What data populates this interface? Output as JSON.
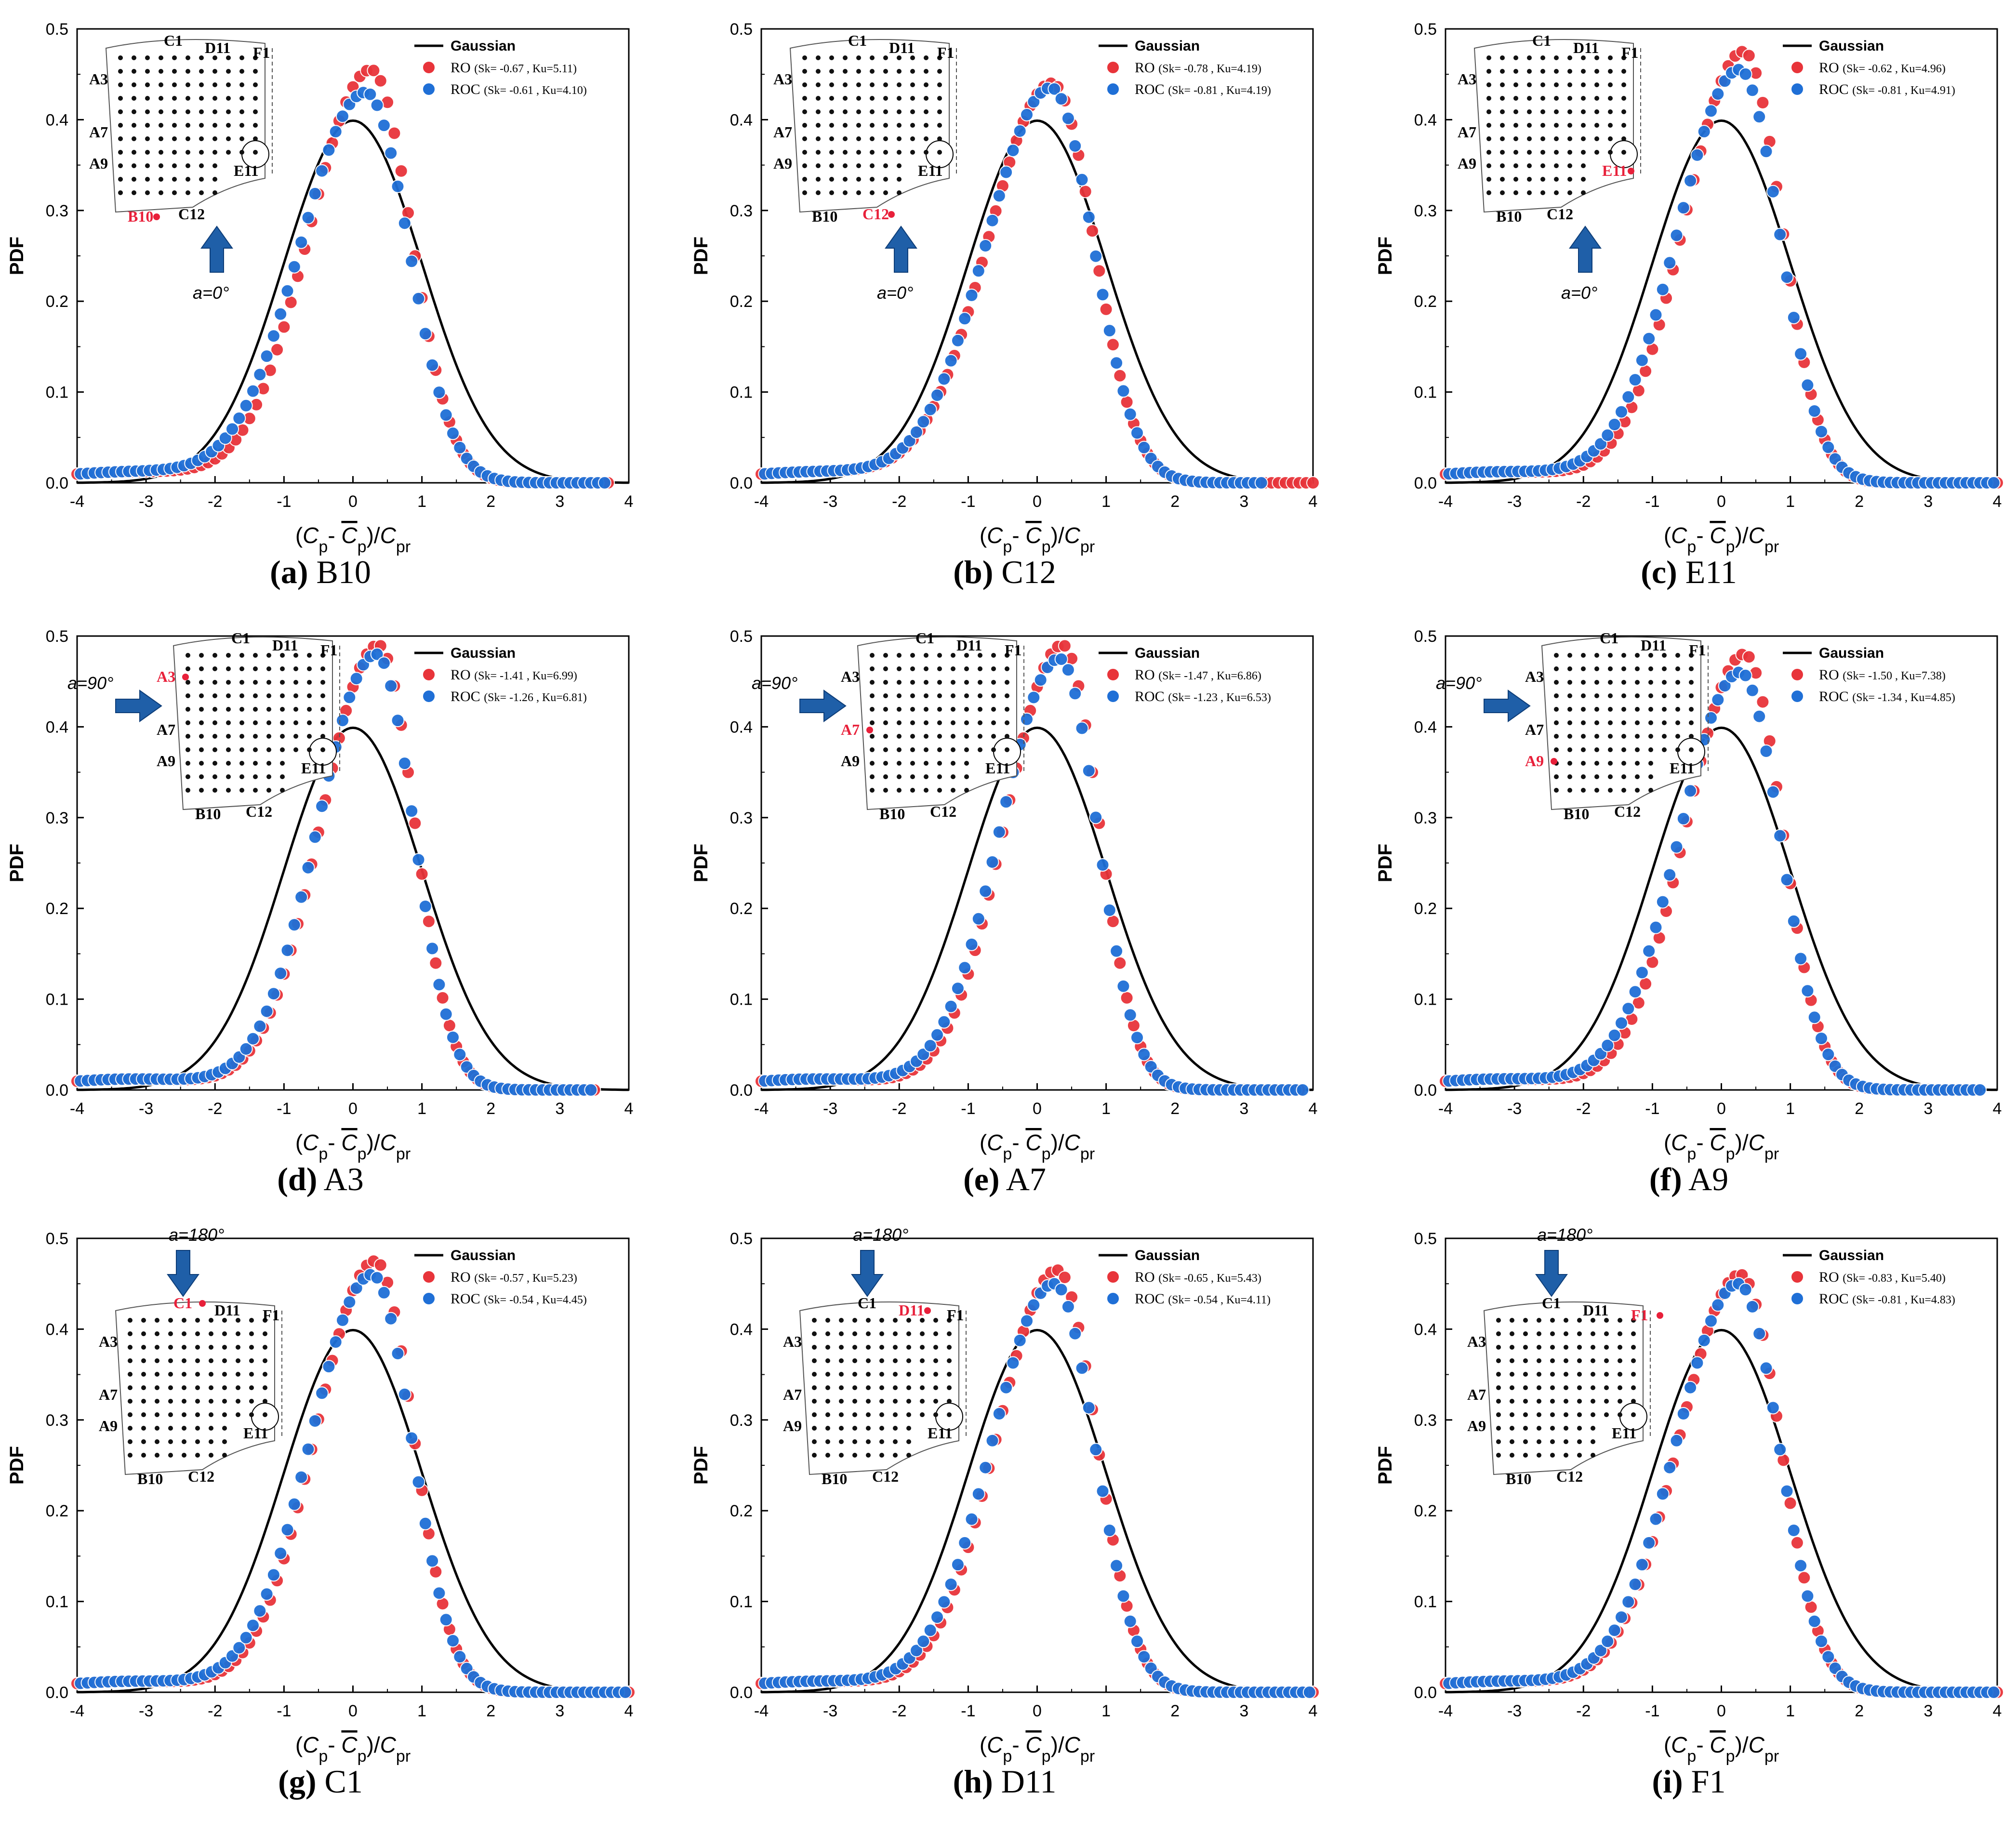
{
  "common": {
    "ylabel": "PDF",
    "xlabel_parts": [
      "(",
      "C",
      "p",
      "- ",
      "C",
      "p",
      ")/",
      "C",
      "pr"
    ],
    "legend": {
      "gaussian": "Gaussian",
      "ro": "RO",
      "roc": "ROC"
    },
    "colors": {
      "ro": "#e8343a",
      "roc": "#1f6fd6",
      "gaussian": "#000000",
      "arrow": "#1f5fa8",
      "highlight": "#e8203a"
    },
    "inset_labels": [
      "C1",
      "D11",
      "F1",
      "A3",
      "A7",
      "A9",
      "E11",
      "B10",
      "C12"
    ]
  },
  "chart_data": [
    {
      "type": "scatter",
      "panel_letter": "a",
      "panel_name": "B10",
      "wind_angle": "a=0°",
      "tap": "B10",
      "ylim": [
        0,
        0.5
      ],
      "xlim": [
        -4,
        4
      ],
      "yticks": [
        "0.0",
        "0.1",
        "0.2",
        "0.3",
        "0.4",
        "0.5"
      ],
      "xticks": [
        "-4",
        "-3",
        "-2",
        "-1",
        "0",
        "1",
        "2",
        "3",
        "4"
      ],
      "series": [
        {
          "name": "RO",
          "Sk": "-0.67",
          "Ku": "5.11",
          "peak": 0.455,
          "xmin": -4.0,
          "xmax": 3.8
        },
        {
          "name": "ROC",
          "Sk": "-0.61",
          "Ku": "4.10",
          "peak": 0.43,
          "xmin": -4.0,
          "xmax": 3.7
        }
      ]
    },
    {
      "type": "scatter",
      "panel_letter": "b",
      "panel_name": "C12",
      "wind_angle": "a=0°",
      "tap": "C12",
      "ylim": [
        0,
        0.5
      ],
      "xlim": [
        -4,
        4
      ],
      "yticks": [
        "0.0",
        "0.1",
        "0.2",
        "0.3",
        "0.4",
        "0.5"
      ],
      "xticks": [
        "-4",
        "-3",
        "-2",
        "-1",
        "0",
        "1",
        "2",
        "3",
        "4"
      ],
      "series": [
        {
          "name": "RO",
          "Sk": "-0.78",
          "Ku": "4.19",
          "peak": 0.44,
          "xmin": -4.0,
          "xmax": 4.0
        },
        {
          "name": "ROC",
          "Sk": "-0.81",
          "Ku": "4.19",
          "peak": 0.435,
          "xmin": -4.0,
          "xmax": 3.3
        }
      ]
    },
    {
      "type": "scatter",
      "panel_letter": "c",
      "panel_name": "E11",
      "wind_angle": "a=0°",
      "tap": "E11",
      "ylim": [
        0,
        0.5
      ],
      "xlim": [
        -4,
        4
      ],
      "yticks": [
        "0.0",
        "0.1",
        "0.2",
        "0.3",
        "0.4",
        "0.5"
      ],
      "xticks": [
        "-4",
        "-3",
        "-2",
        "-1",
        "0",
        "1",
        "2",
        "3",
        "4"
      ],
      "series": [
        {
          "name": "RO",
          "Sk": "-0.62",
          "Ku": "4.96",
          "peak": 0.475,
          "xmin": -4.0,
          "xmax": 4.0
        },
        {
          "name": "ROC",
          "Sk": "-0.81",
          "Ku": "4.91",
          "peak": 0.455,
          "xmin": -4.0,
          "xmax": 4.0
        }
      ]
    },
    {
      "type": "scatter",
      "panel_letter": "d",
      "panel_name": "A3",
      "wind_angle": "a=90°",
      "tap": "A3",
      "ylim": [
        0,
        0.5
      ],
      "xlim": [
        -4,
        4
      ],
      "yticks": [
        "0.0",
        "0.1",
        "0.2",
        "0.3",
        "0.4",
        "0.5"
      ],
      "xticks": [
        "-4",
        "-3",
        "-2",
        "-1",
        "0",
        "1",
        "2",
        "3",
        "4"
      ],
      "series": [
        {
          "name": "RO",
          "Sk": "-1.41",
          "Ku": "6.99",
          "peak": 0.49,
          "xmin": -4.0,
          "xmax": 3.5
        },
        {
          "name": "ROC",
          "Sk": "-1.26",
          "Ku": "6.81",
          "peak": 0.48,
          "xmin": -4.0,
          "xmax": 3.5
        }
      ]
    },
    {
      "type": "scatter",
      "panel_letter": "e",
      "panel_name": "A7",
      "wind_angle": "a=90°",
      "tap": "A7",
      "ylim": [
        0,
        0.5
      ],
      "xlim": [
        -4,
        4
      ],
      "yticks": [
        "0.0",
        "0.1",
        "0.2",
        "0.3",
        "0.4",
        "0.5"
      ],
      "xticks": [
        "-4",
        "-3",
        "-2",
        "-1",
        "0",
        "1",
        "2",
        "3",
        "4"
      ],
      "series": [
        {
          "name": "RO",
          "Sk": "-1.47",
          "Ku": "6.86",
          "peak": 0.49,
          "xmin": -4.0,
          "xmax": 3.9
        },
        {
          "name": "ROC",
          "Sk": "-1.23",
          "Ku": "6.53",
          "peak": 0.475,
          "xmin": -4.0,
          "xmax": 3.9
        }
      ]
    },
    {
      "type": "scatter",
      "panel_letter": "f",
      "panel_name": "A9",
      "wind_angle": "a=90°",
      "tap": "A9",
      "ylim": [
        0,
        0.5
      ],
      "xlim": [
        -4,
        4
      ],
      "yticks": [
        "0.0",
        "0.1",
        "0.2",
        "0.3",
        "0.4",
        "0.5"
      ],
      "xticks": [
        "-4",
        "-3",
        "-2",
        "-1",
        "0",
        "1",
        "2",
        "3",
        "4"
      ],
      "series": [
        {
          "name": "RO",
          "Sk": "-1.50",
          "Ku": "7.38",
          "peak": 0.48,
          "xmin": -4.0,
          "xmax": 3.8
        },
        {
          "name": "ROC",
          "Sk": "-1.34",
          "Ku": "4.85",
          "peak": 0.46,
          "xmin": -4.0,
          "xmax": 3.8
        }
      ]
    },
    {
      "type": "scatter",
      "panel_letter": "g",
      "panel_name": "C1",
      "wind_angle": "a=180°",
      "tap": "C1",
      "ylim": [
        0,
        0.5
      ],
      "xlim": [
        -4,
        4
      ],
      "yticks": [
        "0.0",
        "0.1",
        "0.2",
        "0.3",
        "0.4",
        "0.5"
      ],
      "xticks": [
        "-4",
        "-3",
        "-2",
        "-1",
        "0",
        "1",
        "2",
        "3",
        "4"
      ],
      "series": [
        {
          "name": "RO",
          "Sk": "-0.57",
          "Ku": "5.23",
          "peak": 0.475,
          "xmin": -4.0,
          "xmax": 4.0
        },
        {
          "name": "ROC",
          "Sk": "-0.54",
          "Ku": "4.45",
          "peak": 0.46,
          "xmin": -4.0,
          "xmax": 4.0
        }
      ]
    },
    {
      "type": "scatter",
      "panel_letter": "h",
      "panel_name": "D11",
      "wind_angle": "a=180°",
      "tap": "D11",
      "ylim": [
        0,
        0.5
      ],
      "xlim": [
        -4,
        4
      ],
      "yticks": [
        "0.0",
        "0.1",
        "0.2",
        "0.3",
        "0.4",
        "0.5"
      ],
      "xticks": [
        "-4",
        "-3",
        "-2",
        "-1",
        "0",
        "1",
        "2",
        "3",
        "4"
      ],
      "series": [
        {
          "name": "RO",
          "Sk": "-0.65",
          "Ku": "5.43",
          "peak": 0.465,
          "xmin": -4.0,
          "xmax": 4.0
        },
        {
          "name": "ROC",
          "Sk": "-0.54",
          "Ku": "4.11",
          "peak": 0.45,
          "xmin": -4.0,
          "xmax": 4.0
        }
      ]
    },
    {
      "type": "scatter",
      "panel_letter": "i",
      "panel_name": "F1",
      "wind_angle": "a=180°",
      "tap": "F1",
      "ylim": [
        0,
        0.5
      ],
      "xlim": [
        -4,
        4
      ],
      "yticks": [
        "0.0",
        "0.1",
        "0.2",
        "0.3",
        "0.4",
        "0.5"
      ],
      "xticks": [
        "-4",
        "-3",
        "-2",
        "-1",
        "0",
        "1",
        "2",
        "3",
        "4"
      ],
      "series": [
        {
          "name": "RO",
          "Sk": "-0.83",
          "Ku": "5.40",
          "peak": 0.46,
          "xmin": -4.0,
          "xmax": 4.0
        },
        {
          "name": "ROC",
          "Sk": "-0.81",
          "Ku": "4.83",
          "peak": 0.45,
          "xmin": -4.0,
          "xmax": 4.0
        }
      ]
    }
  ]
}
